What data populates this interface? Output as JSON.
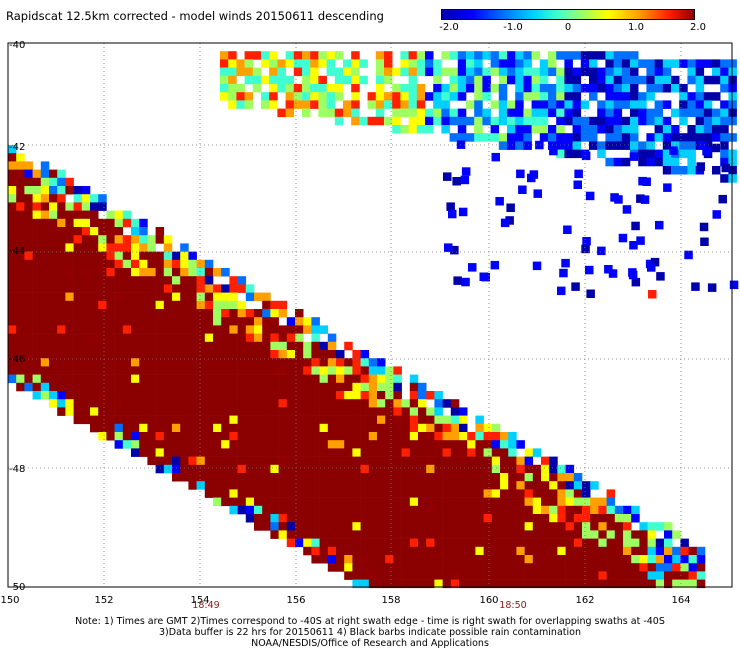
{
  "title": "Rapidscat 12.5km corrected - model winds 20150611 descending",
  "colorbar": {
    "ticks": [
      "-2.0",
      "-1.0",
      "0",
      "1.0",
      "2.0"
    ],
    "colors": [
      "#0000a8",
      "#0000ff",
      "#0070ff",
      "#00d0ff",
      "#40ffd0",
      "#a0ff60",
      "#ffff00",
      "#ffa000",
      "#ff2000",
      "#900000"
    ]
  },
  "map": {
    "lon_labels": [
      "150",
      "152",
      "154",
      "156",
      "158",
      "160",
      "162",
      "164"
    ],
    "lat_labels": [
      "-40",
      "-42",
      "-44",
      "-46",
      "-48",
      "-50"
    ],
    "lon_range": [
      150,
      165.5
    ],
    "lat_range": [
      -40,
      -50
    ],
    "grid": true,
    "swath_fill_color": "#8b0000"
  },
  "times": [
    "18:49",
    "18:50"
  ],
  "footer": {
    "line1": "Note: 1) Times are GMT 2)Times correspond to -40S at right swath edge - time is right swath for overlapping swaths at -40S",
    "line2": "3)Data buffer is 22 hrs for 20150611 4) Black barbs indicate possible rain contamination",
    "line3": "NOAA/NESDIS/Office of Research and Applications"
  }
}
